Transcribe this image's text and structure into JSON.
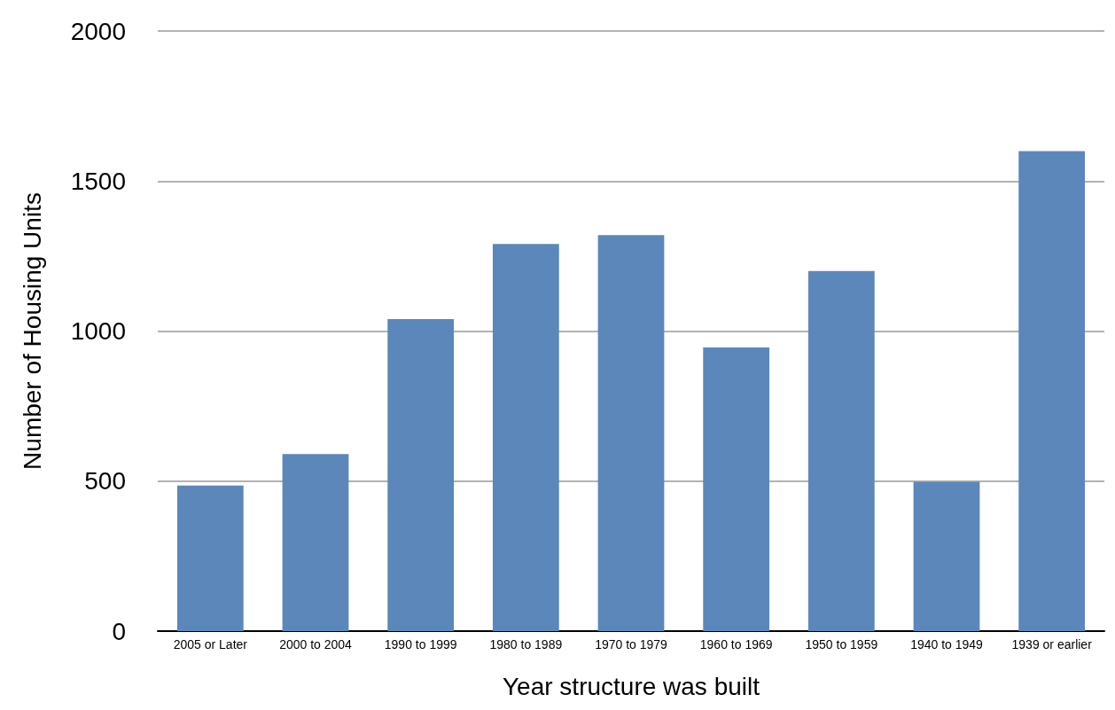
{
  "chart_data": {
    "type": "bar",
    "xlabel": "Year structure was built",
    "ylabel": "Number of Housing Units",
    "categories": [
      "2005 or Later",
      "2000 to 2004",
      "1990 to 1999",
      "1980 to 1989",
      "1970 to 1979",
      "1960 to 1969",
      "1950 to 1959",
      "1940 to 1949",
      "1939 or earlier"
    ],
    "values": [
      485,
      590,
      1040,
      1290,
      1320,
      945,
      1200,
      498,
      1600
    ],
    "color": "#5b87bb",
    "ylim": [
      0,
      2000
    ],
    "yticks": [
      0,
      500,
      1000,
      1500,
      2000
    ],
    "grid": "y"
  }
}
